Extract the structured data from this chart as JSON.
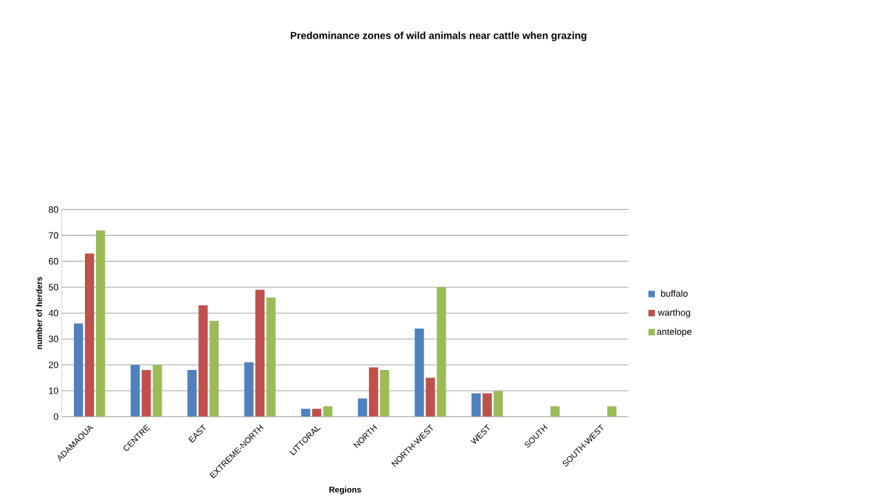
{
  "chart_data": {
    "type": "bar",
    "title": "Predominance zones of  wild animals near   cattle when grazing",
    "xlabel": "Regions",
    "ylabel": "number of herders",
    "categories": [
      "ADAMAOUA",
      "CENTRE",
      "EAST",
      "EXTREME-NORTH",
      "LITTORAL",
      "NORTH",
      "NORTH-WEST",
      "WEST",
      "SOUTH",
      "SOUTH-WEST"
    ],
    "series": [
      {
        "name": "buffalo",
        "color": "#4f81bd",
        "values": [
          36,
          20,
          18,
          21,
          3,
          7,
          34,
          9,
          0,
          0
        ]
      },
      {
        "name": "warthog",
        "color": "#c0504d",
        "values": [
          63,
          18,
          43,
          49,
          3,
          19,
          15,
          9,
          0,
          0
        ]
      },
      {
        "name": "antelope",
        "color": "#9bbb59",
        "values": [
          72,
          20,
          37,
          46,
          4,
          18,
          50,
          10,
          4,
          4
        ]
      }
    ],
    "ylim": [
      0,
      80
    ],
    "yticks": [
      0,
      10,
      20,
      30,
      40,
      50,
      60,
      70,
      80
    ],
    "grid": "y",
    "legend": "right"
  }
}
